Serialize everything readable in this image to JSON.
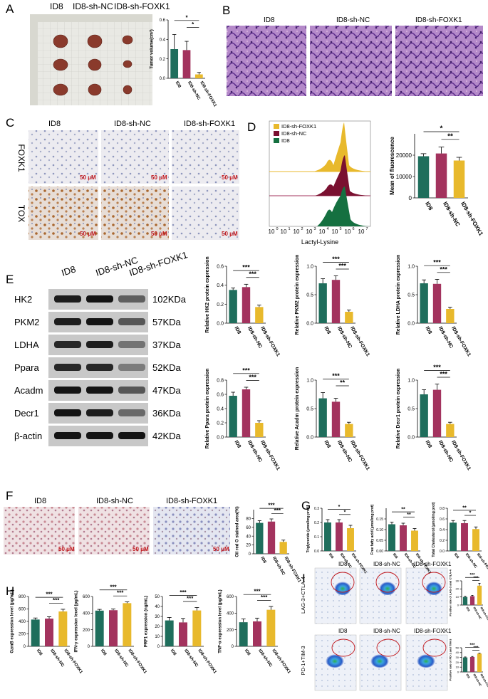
{
  "colors": {
    "id8": "#1f6e5c",
    "nc": "#a3335e",
    "foxk1": "#e8b92c",
    "he": "#7b4fa8",
    "ihc": "#b5793f"
  },
  "groups": [
    "ID8",
    "ID8-sh-NC",
    "ID8-sh-FOXK1"
  ],
  "panels": {
    "A": {
      "letter": "A",
      "groups": [
        "ID8",
        "ID8-sh-NC",
        "ID8-sh-FOXK1"
      ]
    },
    "B": {
      "letter": "B",
      "groups": [
        "ID8",
        "ID8-sh-NC",
        "ID8-sh-FOXK1"
      ]
    },
    "C": {
      "letter": "C",
      "groups": [
        "ID8",
        "ID8-sh-NC",
        "ID8-sh-FOXK1"
      ],
      "rows": [
        "FOXK1",
        "TOX"
      ],
      "scale": "50 μM"
    },
    "D": {
      "letter": "D",
      "legend": [
        "ID8-sh-FOXK1",
        "ID8-sh-NC",
        "ID8"
      ],
      "xlabel": "Lactyl-Lysine"
    },
    "E": {
      "letter": "E",
      "groups": [
        "ID8",
        "ID8-sh-NC",
        "ID8-sh-FOXK1"
      ],
      "proteins": [
        "HK2",
        "PKM2",
        "LDHA",
        "Ppara",
        "Acadm",
        "Decr1",
        "β-actin"
      ],
      "sizes": [
        "102KDa",
        "57KDa",
        "37KDa",
        "52KDa",
        "47KDa",
        "36KDa",
        "42KDa"
      ]
    },
    "F": {
      "letter": "F",
      "groups": [
        "ID8",
        "ID8-sh-NC",
        "ID8-sh-FOXK1"
      ],
      "scale": "50 μM"
    },
    "G": {
      "letter": "G"
    },
    "H": {
      "letter": "H"
    },
    "I": {
      "letter": "I",
      "groups": [
        "ID8",
        "ID8-sh-NC",
        "ID8-sh-FOXK1"
      ],
      "rows": [
        "LAG-3+CTLA-4",
        "PD-1+TIM-3"
      ]
    }
  },
  "chart_data": [
    {
      "id": "A-tumor-volume",
      "type": "bar",
      "categories": [
        "ID8",
        "ID8-sh-NC",
        "ID8-sh-FOXK1"
      ],
      "values": [
        0.3,
        0.29,
        0.04
      ],
      "errors": [
        0.15,
        0.09,
        0.02
      ],
      "ylabel": "Tumor volume(cm³)",
      "ylim": [
        0,
        0.6
      ],
      "yticks": [
        "0.0",
        "0.2",
        "0.4",
        "0.6"
      ],
      "sig": [
        {
          "a": 0,
          "b": 2,
          "t": "*"
        },
        {
          "a": 1,
          "b": 2,
          "t": "*"
        }
      ]
    },
    {
      "id": "D-fluorescence",
      "type": "bar",
      "categories": [
        "ID8",
        "ID8-sh-NC",
        "ID8-sh-FOXK1"
      ],
      "values": [
        19500,
        20800,
        17500
      ],
      "errors": [
        1200,
        3000,
        1500
      ],
      "ylabel": "Mean of fluorescence",
      "ylim": [
        0,
        30000
      ],
      "yticks": [
        "0",
        "10000",
        "20000"
      ],
      "sig": [
        {
          "a": 0,
          "b": 2,
          "t": "*"
        },
        {
          "a": 1,
          "b": 2,
          "t": "**"
        }
      ]
    },
    {
      "id": "E-HK2",
      "type": "bar",
      "categories": [
        "ID8",
        "ID8-sh-NC",
        "ID8-sh-FOXK1"
      ],
      "values": [
        0.35,
        0.38,
        0.17
      ],
      "errors": [
        0.02,
        0.03,
        0.02
      ],
      "ylabel": "Relative HK2 protein expression",
      "ylim": [
        0,
        0.6
      ],
      "yticks": [
        "0.0",
        "0.2",
        "0.4",
        "0.6"
      ],
      "sig": [
        {
          "a": 0,
          "b": 2,
          "t": "***"
        },
        {
          "a": 1,
          "b": 2,
          "t": "***"
        }
      ]
    },
    {
      "id": "E-PKM2",
      "type": "bar",
      "categories": [
        "ID8",
        "ID8-sh-NC",
        "ID8-sh-FOXK1"
      ],
      "values": [
        0.7,
        0.76,
        0.2
      ],
      "errors": [
        0.08,
        0.07,
        0.03
      ],
      "ylabel": "Relative PKM2 protein expression",
      "ylim": [
        0,
        1.0
      ],
      "yticks": [
        "0.0",
        "0.5",
        "1.0"
      ],
      "sig": [
        {
          "a": 0,
          "b": 2,
          "t": "***"
        },
        {
          "a": 1,
          "b": 2,
          "t": "***"
        }
      ]
    },
    {
      "id": "E-LDHA",
      "type": "bar",
      "categories": [
        "ID8",
        "ID8-sh-NC",
        "ID8-sh-FOXK1"
      ],
      "values": [
        0.7,
        0.69,
        0.25
      ],
      "errors": [
        0.06,
        0.08,
        0.03
      ],
      "ylabel": "Relative LDHA protein expression",
      "ylim": [
        0,
        1.0
      ],
      "yticks": [
        "0.0",
        "0.5",
        "1.0"
      ],
      "sig": [
        {
          "a": 0,
          "b": 2,
          "t": "***"
        },
        {
          "a": 1,
          "b": 2,
          "t": "***"
        }
      ]
    },
    {
      "id": "E-Ppara",
      "type": "bar",
      "categories": [
        "ID8",
        "ID8-sh-NC",
        "ID8-sh-FOXK1"
      ],
      "values": [
        0.58,
        0.67,
        0.2
      ],
      "errors": [
        0.05,
        0.03,
        0.03
      ],
      "ylabel": "Relative Ppara protein expression",
      "ylim": [
        0,
        0.8
      ],
      "yticks": [
        "0.0",
        "0.2",
        "0.4",
        "0.6",
        "0.8"
      ],
      "sig": [
        {
          "a": 0,
          "b": 2,
          "t": "***"
        },
        {
          "a": 1,
          "b": 2,
          "t": "***"
        }
      ]
    },
    {
      "id": "E-Acadm",
      "type": "bar",
      "categories": [
        "ID8",
        "ID8-sh-NC",
        "ID8-sh-FOXK1"
      ],
      "values": [
        0.68,
        0.62,
        0.23
      ],
      "errors": [
        0.1,
        0.06,
        0.03
      ],
      "ylabel": "Relative Acadm protein expression",
      "ylim": [
        0,
        1.0
      ],
      "yticks": [
        "0.0",
        "0.5",
        "1.0"
      ],
      "sig": [
        {
          "a": 0,
          "b": 2,
          "t": "***"
        },
        {
          "a": 1,
          "b": 2,
          "t": "**"
        }
      ]
    },
    {
      "id": "E-Decr1",
      "type": "bar",
      "categories": [
        "ID8",
        "ID8-sh-NC",
        "ID8-sh-FOXK1"
      ],
      "values": [
        0.75,
        0.83,
        0.23
      ],
      "errors": [
        0.08,
        0.1,
        0.03
      ],
      "ylabel": "Relative Decr1 protein expression",
      "ylim": [
        0,
        1.0
      ],
      "yticks": [
        "0.0",
        "0.5",
        "1.0"
      ],
      "sig": [
        {
          "a": 0,
          "b": 2,
          "t": "***"
        },
        {
          "a": 1,
          "b": 2,
          "t": "***"
        }
      ]
    },
    {
      "id": "F-oil-red",
      "type": "bar",
      "categories": [
        "ID8",
        "ID8-sh-NC",
        "ID8-sh-FOXK1"
      ],
      "values": [
        70,
        73,
        27
      ],
      "errors": [
        5,
        6,
        4
      ],
      "ylabel": "Oil red O stained area(%)",
      "ylim": [
        0,
        100
      ],
      "yticks": [
        "0",
        "20",
        "40",
        "60",
        "80"
      ],
      "sig": [
        {
          "a": 0,
          "b": 2,
          "t": "***"
        },
        {
          "a": 1,
          "b": 2,
          "t": "***"
        }
      ]
    },
    {
      "id": "G-TG",
      "type": "bar",
      "categories": [
        "ID8",
        "ID8-sh-NC",
        "ID8-sh-FOXK1"
      ],
      "values": [
        0.2,
        0.2,
        0.16
      ],
      "errors": [
        0.02,
        0.02,
        0.02
      ],
      "ylabel": "Triglyceride (μmol/mg prot)",
      "ylim": [
        0,
        0.3
      ],
      "yticks": [
        "0.0",
        "0.1",
        "0.2",
        "0.3"
      ],
      "sig": [
        {
          "a": 0,
          "b": 2,
          "t": "*"
        },
        {
          "a": 1,
          "b": 2,
          "t": "*"
        }
      ]
    },
    {
      "id": "G-FFA",
      "type": "bar",
      "categories": [
        "ID8",
        "ID8-sh-NC",
        "ID8-sh-FOXK1"
      ],
      "values": [
        0.125,
        0.12,
        0.095
      ],
      "errors": [
        0.01,
        0.01,
        0.01
      ],
      "ylabel": "Free fatty acid (μmol/mg prot)",
      "ylim": [
        0,
        0.2
      ],
      "yticks": [
        "0.00",
        "0.05",
        "0.10",
        "0.15"
      ],
      "sig": [
        {
          "a": 0,
          "b": 2,
          "t": "**"
        },
        {
          "a": 1,
          "b": 2,
          "t": "**"
        }
      ]
    },
    {
      "id": "G-TC",
      "type": "bar",
      "categories": [
        "ID8",
        "ID8-sh-NC",
        "ID8-sh-FOXK1"
      ],
      "values": [
        0.53,
        0.52,
        0.41
      ],
      "errors": [
        0.04,
        0.05,
        0.04
      ],
      "ylabel": "Total Cholesterol (μmol/mg prot)",
      "ylim": [
        0,
        0.8
      ],
      "yticks": [
        "0.0",
        "0.2",
        "0.4",
        "0.6",
        "0.8"
      ],
      "sig": [
        {
          "a": 0,
          "b": 2,
          "t": "**"
        },
        {
          "a": 1,
          "b": 2,
          "t": "*"
        }
      ]
    },
    {
      "id": "H-GzmB",
      "type": "bar",
      "categories": [
        "ID8",
        "ID8-sh-NC",
        "ID8-sh-FOXK1"
      ],
      "values": [
        430,
        445,
        560
      ],
      "errors": [
        25,
        30,
        35
      ],
      "ylabel": "GzmB expression level (pg/mL)",
      "ylim": [
        0,
        800
      ],
      "yticks": [
        "0",
        "200",
        "400",
        "600",
        "800"
      ],
      "sig": [
        {
          "a": 0,
          "b": 2,
          "t": "***"
        },
        {
          "a": 1,
          "b": 2,
          "t": "***"
        }
      ]
    },
    {
      "id": "H-IFNg",
      "type": "bar",
      "categories": [
        "ID8",
        "ID8-sh-NC",
        "ID8-sh-FOXK1"
      ],
      "values": [
        430,
        435,
        520
      ],
      "errors": [
        15,
        15,
        15
      ],
      "ylabel": "IFN-γ expression level (pg/mL)",
      "ylim": [
        0,
        600
      ],
      "yticks": [
        "0",
        "200",
        "400",
        "600"
      ],
      "sig": [
        {
          "a": 0,
          "b": 2,
          "t": "***"
        },
        {
          "a": 1,
          "b": 2,
          "t": "***"
        }
      ]
    },
    {
      "id": "H-PRF1",
      "type": "bar",
      "categories": [
        "ID8",
        "ID8-sh-NC",
        "ID8-sh-FOXK1"
      ],
      "values": [
        26,
        24,
        36
      ],
      "errors": [
        3,
        4,
        3
      ],
      "ylabel": "PRF1 expression (ng/mL)",
      "ylim": [
        0,
        50
      ],
      "yticks": [
        "0",
        "10",
        "20",
        "30",
        "40",
        "50"
      ],
      "sig": [
        {
          "a": 0,
          "b": 2,
          "t": "***"
        },
        {
          "a": 1,
          "b": 2,
          "t": "***"
        }
      ]
    },
    {
      "id": "H-TNFa",
      "type": "bar",
      "categories": [
        "ID8",
        "ID8-sh-NC",
        "ID8-sh-FOXK1"
      ],
      "values": [
        290,
        300,
        440
      ],
      "errors": [
        40,
        40,
        40
      ],
      "ylabel": "TNF-α expression level (pg/mL)",
      "ylim": [
        0,
        600
      ],
      "yticks": [
        "0",
        "200",
        "400",
        "600"
      ],
      "sig": [
        {
          "a": 0,
          "b": 2,
          "t": "***"
        },
        {
          "a": 1,
          "b": 2,
          "t": "***"
        }
      ]
    },
    {
      "id": "I-LAG3-CTLA4",
      "type": "bar",
      "categories": [
        "ID8",
        "ID8-sh-NC",
        "ID8-sh-FOXK1"
      ],
      "values": [
        10,
        11,
        24
      ],
      "errors": [
        1,
        1,
        3
      ],
      "ylabel": "Positive rate of LAG-3 and CTLA-4",
      "ylim": [
        0,
        30
      ],
      "yticks": [
        "0",
        "10",
        "20",
        "30"
      ],
      "sig": [
        {
          "a": 0,
          "b": 2,
          "t": "***"
        },
        {
          "a": 1,
          "b": 2,
          "t": "***"
        }
      ]
    },
    {
      "id": "I-PD1-TIM3",
      "type": "bar",
      "categories": [
        "ID8",
        "ID8-sh-NC",
        "ID8-sh-FOXK1"
      ],
      "values": [
        30,
        31,
        38
      ],
      "errors": [
        1,
        1,
        1
      ],
      "ylabel": "Positive rate of PD-1 and TIM-3",
      "ylim": [
        0,
        50
      ],
      "yticks": [
        "0",
        "10",
        "20",
        "30",
        "40",
        "50"
      ],
      "sig": [
        {
          "a": 0,
          "b": 2,
          "t": "***"
        },
        {
          "a": 1,
          "b": 2,
          "t": "***"
        }
      ]
    }
  ]
}
